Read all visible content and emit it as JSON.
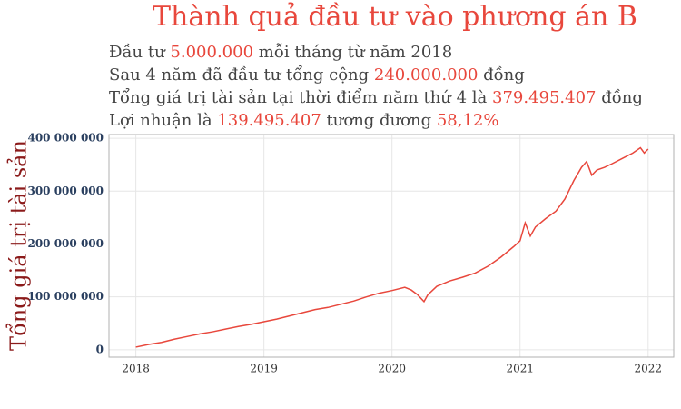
{
  "chart_data": {
    "type": "line",
    "title": "Thành quả đầu tư vào phương án B",
    "title_color": "#e8473c",
    "subtitle": [
      [
        {
          "text": "Đầu tư ",
          "color": "#444444"
        },
        {
          "text": "5.000.000",
          "color": "#e8473c"
        },
        {
          "text": " mỗi tháng từ năm 2018",
          "color": "#444444"
        }
      ],
      [
        {
          "text": "Sau 4 năm đã đầu tư tổng cộng ",
          "color": "#444444"
        },
        {
          "text": "240.000.000",
          "color": "#e8473c"
        },
        {
          "text": " đồng",
          "color": "#444444"
        }
      ],
      [
        {
          "text": "Tổng giá trị tài sản tại thời điểm năm thứ 4 là ",
          "color": "#444444"
        },
        {
          "text": "379.495.407",
          "color": "#e8473c"
        },
        {
          "text": " đồng",
          "color": "#444444"
        }
      ],
      [
        {
          "text": "Lợi nhuận là ",
          "color": "#444444"
        },
        {
          "text": "139.495.407",
          "color": "#e8473c"
        },
        {
          "text": " tương đương ",
          "color": "#444444"
        },
        {
          "text": "58,12%",
          "color": "#e8473c"
        }
      ]
    ],
    "y_label": "Tổng giá trị tài sản",
    "y_label_color": "#8b1a1a",
    "grid": true,
    "x": [
      2018.0,
      2018.1,
      2018.2,
      2018.3,
      2018.4,
      2018.5,
      2018.6,
      2018.7,
      2018.8,
      2018.9,
      2019.0,
      2019.1,
      2019.2,
      2019.3,
      2019.4,
      2019.5,
      2019.6,
      2019.7,
      2019.8,
      2019.9,
      2020.0,
      2020.1,
      2020.15,
      2020.2,
      2020.25,
      2020.28,
      2020.35,
      2020.45,
      2020.55,
      2020.65,
      2020.75,
      2020.85,
      2020.95,
      2021.0,
      2021.04,
      2021.08,
      2021.12,
      2021.2,
      2021.28,
      2021.35,
      2021.42,
      2021.48,
      2021.52,
      2021.56,
      2021.6,
      2021.66,
      2021.72,
      2021.8,
      2021.88,
      2021.94,
      2021.97,
      2022.0
    ],
    "series": [
      {
        "name": "Tổng giá trị tài sản",
        "color": "#e8473c",
        "values": [
          5000000,
          10000000,
          14000000,
          20000000,
          25000000,
          30000000,
          34000000,
          39000000,
          44000000,
          48000000,
          53000000,
          58000000,
          64000000,
          70000000,
          76000000,
          80000000,
          86000000,
          92000000,
          100000000,
          107000000,
          112000000,
          118000000,
          113000000,
          104000000,
          91000000,
          104000000,
          120000000,
          130000000,
          137000000,
          145000000,
          158000000,
          175000000,
          195000000,
          206000000,
          240000000,
          215000000,
          232000000,
          248000000,
          262000000,
          285000000,
          320000000,
          345000000,
          356000000,
          330000000,
          340000000,
          345000000,
          352000000,
          362000000,
          372000000,
          382000000,
          372000000,
          379495407
        ]
      }
    ],
    "xlim": [
      2017.79,
      2022.2
    ],
    "xticks": [
      2018,
      2019,
      2020,
      2021,
      2022
    ],
    "ylim": [
      -14000000,
      407000000
    ],
    "yticks": [
      {
        "value": 0,
        "label": "0"
      },
      {
        "value": 100000000,
        "label": "100 000 000"
      },
      {
        "value": 200000000,
        "label": "200 000 000"
      },
      {
        "value": 300000000,
        "label": "300 000 000"
      },
      {
        "value": 400000000,
        "label": "400 000 000"
      }
    ]
  }
}
